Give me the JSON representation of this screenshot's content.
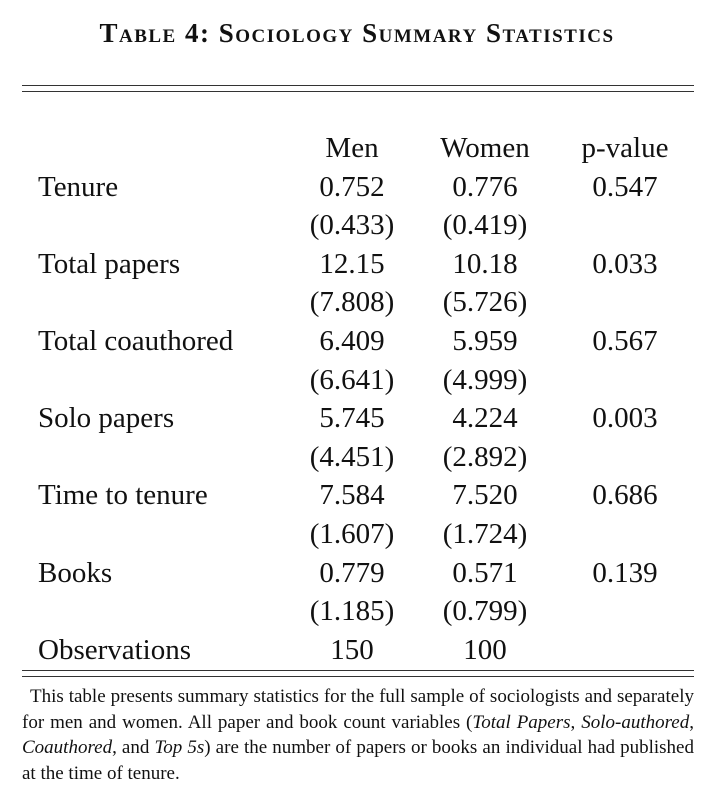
{
  "title": "Table 4: Sociology Summary Statistics",
  "table": {
    "header": [
      "Men",
      "Women",
      "p-value"
    ],
    "rows": [
      {
        "label": "Tenure",
        "men": [
          "0.752",
          "(0.433)"
        ],
        "women": [
          "0.776",
          "(0.419)"
        ],
        "p": "0.547"
      },
      {
        "label": "Total papers",
        "men": [
          "12.15",
          "(7.808)"
        ],
        "women": [
          "10.18",
          "(5.726)"
        ],
        "p": "0.033"
      },
      {
        "label": "Total coauthored",
        "men": [
          "6.409",
          "(6.641)"
        ],
        "women": [
          "5.959",
          "(4.999)"
        ],
        "p": "0.567"
      },
      {
        "label": "Solo papers",
        "men": [
          "5.745",
          "(4.451)"
        ],
        "women": [
          "4.224",
          "(2.892)"
        ],
        "p": "0.003"
      },
      {
        "label": "Time to tenure",
        "men": [
          "7.584",
          "(1.607)"
        ],
        "women": [
          "7.520",
          "(1.724)"
        ],
        "p": "0.686"
      },
      {
        "label": "Books",
        "men": [
          "0.779",
          "(1.185)"
        ],
        "women": [
          "0.571",
          "(0.799)"
        ],
        "p": "0.139"
      }
    ],
    "observations": {
      "label": "Observations",
      "men": "150",
      "women": "100"
    }
  },
  "note": [
    {
      "text": "This table presents summary statistics for the full sample of sociologists and separately for men and women. All paper and book count variables ("
    },
    {
      "text": "Total Papers",
      "italic": true
    },
    {
      "text": ", "
    },
    {
      "text": "Solo-authored",
      "italic": true
    },
    {
      "text": ", "
    },
    {
      "text": "Coauthored",
      "italic": true
    },
    {
      "text": ", and "
    },
    {
      "text": "Top 5s",
      "italic": true
    },
    {
      "text": ") are the number of papers or books an individual had published at the time of tenure."
    }
  ]
}
